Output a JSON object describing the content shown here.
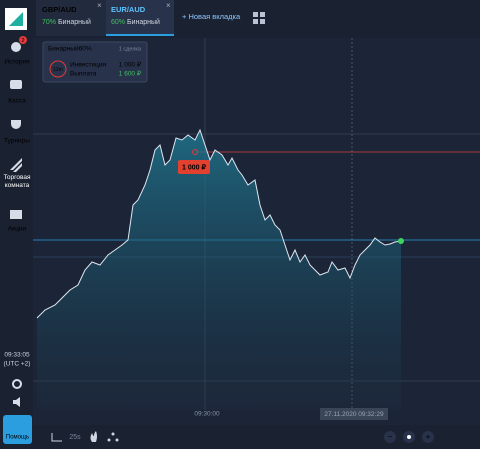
{
  "tabs": [
    {
      "pair": "GBP/AUD",
      "percent": "70%",
      "mode": "Бинарный"
    },
    {
      "pair": "EUR/AUD",
      "percent": "60%",
      "mode": "Бинарный"
    }
  ],
  "new_tab": "+ Новая вкладка",
  "sidebar": {
    "items": [
      "История",
      "Касса",
      "Турниры",
      "Торговая комната",
      "Акции"
    ],
    "badge": "2",
    "clock": "09:33:05",
    "timezone": "(UTC +2)",
    "help": "Помощь"
  },
  "trade_card": {
    "title": "Бинарный60%",
    "deals": "1 сделка",
    "timer": "12m",
    "rows": [
      [
        "Инвестиция",
        "1 000 ₽"
      ],
      [
        "Выплата",
        "1 600 ₽"
      ]
    ]
  },
  "chart": {
    "bet_label": "1 000 ₽",
    "time_label": "09:30:00",
    "cursor_label": "27.11.2020 09:32:29"
  },
  "toolbar": {
    "timeframe": "25s"
  }
}
